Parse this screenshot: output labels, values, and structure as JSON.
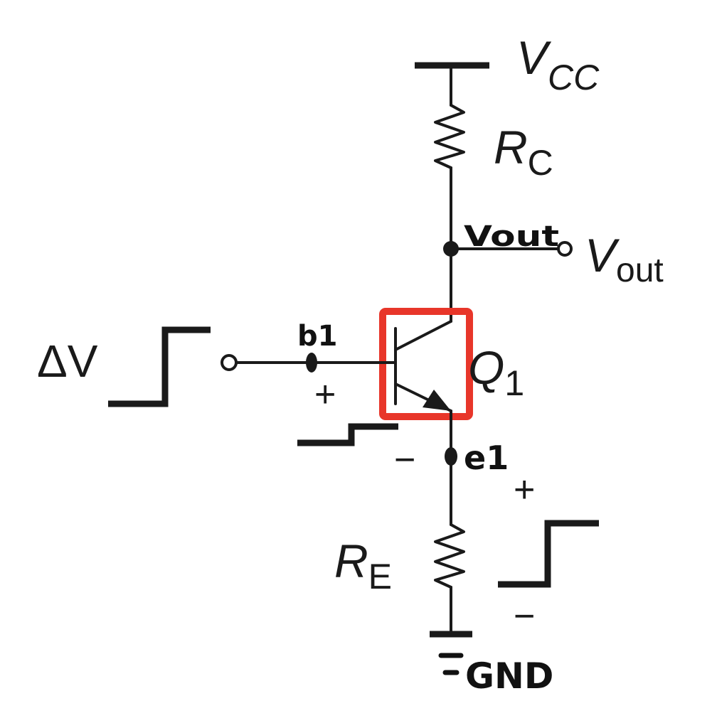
{
  "labels": {
    "vcc_main": "V",
    "vcc_sub": "CC",
    "rc_main": "R",
    "rc_sub": "C",
    "re_main": "R",
    "re_sub": "E",
    "vout_main": "V",
    "vout_sub": "out",
    "q1_main": "Q",
    "q1_sub": "1",
    "delta_v": "ΔV",
    "base_plus": "+",
    "emitter_minus": "−",
    "re_plus": "+",
    "re_minus": "−"
  },
  "annotations": {
    "vout_hand": "Vout",
    "b1_hand": "b1",
    "e1_hand": "e1",
    "gnd_hand": "GND"
  },
  "highlight": {
    "target": "Q1",
    "color": "#e8362a"
  }
}
